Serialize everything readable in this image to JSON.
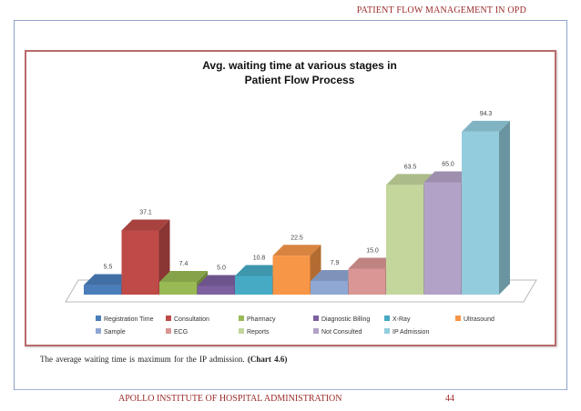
{
  "header": {
    "text": "PATIENT FLOW MANAGEMENT IN OPD"
  },
  "footer": {
    "institute": "APOLLO INSTITUTE OF HOSPITAL ADMINISTRATION",
    "page_number": "44"
  },
  "caption": {
    "text": "The  average  waiting  time  is  maximum  for the IP admission.",
    "ref": "(Chart  4.6)"
  },
  "chart_data": {
    "type": "bar",
    "title": "Avg. waiting time at various stages in Patient Flow Process",
    "title_lines": [
      "Avg. waiting time at various stages in",
      "Patient Flow Process"
    ],
    "categories": [
      "Registration Time",
      "Consultation",
      "Pharmacy",
      "Diagnostic Billing",
      "X-Ray",
      "Ultrasound",
      "Sample",
      "ECG",
      "Reports",
      "Not Consulted",
      "IP Admission"
    ],
    "values": [
      5.5,
      37.1,
      7.4,
      5.0,
      10.8,
      22.5,
      7.9,
      15.0,
      63.5,
      65.0,
      94.3
    ],
    "value_labels": [
      "5.5",
      "37.1",
      "7.4",
      "5.0",
      "10.8",
      "22.5",
      "7.9",
      "15.0",
      "63.5",
      "65.0",
      "94.3"
    ],
    "colors": [
      "#4a7ebb",
      "#be4b48",
      "#98b954",
      "#7d60a0",
      "#46aac5",
      "#f79646",
      "#8fa7d3",
      "#d99694",
      "#c3d69b",
      "#b3a2c7",
      "#93cddd"
    ],
    "ylim": [
      0,
      100
    ],
    "legend_position": "bottom",
    "grid": false
  }
}
